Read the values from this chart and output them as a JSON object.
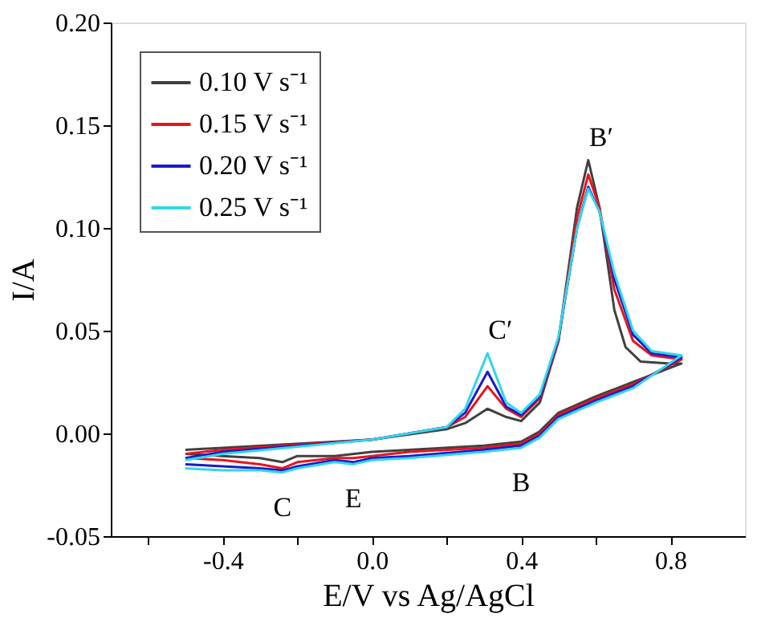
{
  "chart_data": {
    "type": "line",
    "xlabel": "E/V vs Ag/AgCl",
    "ylabel": "I/A",
    "xlim": [
      -0.7,
      1.0
    ],
    "ylim": [
      -0.05,
      0.2
    ],
    "xticks": [
      {
        "value": -0.6,
        "label": null
      },
      {
        "value": -0.4,
        "label": "-0.4"
      },
      {
        "value": -0.2,
        "label": null
      },
      {
        "value": 0.0,
        "label": "0.0"
      },
      {
        "value": 0.2,
        "label": null
      },
      {
        "value": 0.4,
        "label": "0.4"
      },
      {
        "value": 0.6,
        "label": null
      },
      {
        "value": 0.8,
        "label": "0.8"
      }
    ],
    "yticks": [
      {
        "value": -0.05,
        "label": "-0.05"
      },
      {
        "value": 0.0,
        "label": "0.00"
      },
      {
        "value": 0.05,
        "label": "0.05"
      },
      {
        "value": 0.1,
        "label": "0.10"
      },
      {
        "value": 0.15,
        "label": "0.15"
      },
      {
        "value": 0.2,
        "label": "0.20"
      }
    ],
    "grid": false,
    "legend": "top left",
    "marker": "none",
    "line_style": "solid",
    "series": [
      {
        "name": "0.10 V s⁻¹",
        "color": "#404040",
        "x": [
          -0.5,
          -0.4,
          0.0,
          0.2,
          0.25,
          0.31,
          0.36,
          0.4,
          0.45,
          0.5,
          0.55,
          0.58,
          0.61,
          0.65,
          0.68,
          0.72,
          0.8,
          0.83,
          0.7,
          0.6,
          0.5,
          0.45,
          0.4,
          0.3,
          0.1,
          0.0,
          -0.1,
          -0.2,
          -0.24,
          -0.3,
          -0.4,
          -0.5
        ],
        "values": [
          -0.008,
          -0.007,
          -0.003,
          0.002,
          0.005,
          0.012,
          0.008,
          0.006,
          0.015,
          0.045,
          0.11,
          0.133,
          0.11,
          0.06,
          0.042,
          0.035,
          0.034,
          0.034,
          0.025,
          0.018,
          0.01,
          0.001,
          -0.004,
          -0.006,
          -0.008,
          -0.009,
          -0.011,
          -0.011,
          -0.014,
          -0.012,
          -0.011,
          -0.01
        ]
      },
      {
        "name": "0.15 V s⁻¹",
        "color": "#e8141c",
        "x": [
          -0.5,
          -0.4,
          0.0,
          0.2,
          0.25,
          0.31,
          0.36,
          0.4,
          0.45,
          0.5,
          0.55,
          0.58,
          0.61,
          0.65,
          0.7,
          0.75,
          0.83,
          0.7,
          0.6,
          0.5,
          0.45,
          0.4,
          0.3,
          0.1,
          0.0,
          -0.05,
          -0.1,
          -0.2,
          -0.24,
          -0.3,
          -0.4,
          -0.5
        ],
        "values": [
          -0.01,
          -0.008,
          -0.003,
          0.003,
          0.008,
          0.023,
          0.012,
          0.008,
          0.017,
          0.045,
          0.105,
          0.126,
          0.11,
          0.07,
          0.045,
          0.038,
          0.036,
          0.024,
          0.017,
          0.009,
          0.0,
          -0.005,
          -0.007,
          -0.009,
          -0.011,
          -0.012,
          -0.012,
          -0.014,
          -0.017,
          -0.015,
          -0.013,
          -0.012
        ]
      },
      {
        "name": "0.20 V s⁻¹",
        "color": "#1a1acc",
        "x": [
          -0.5,
          -0.4,
          0.0,
          0.2,
          0.25,
          0.31,
          0.36,
          0.4,
          0.45,
          0.5,
          0.55,
          0.58,
          0.61,
          0.65,
          0.7,
          0.75,
          0.83,
          0.7,
          0.6,
          0.5,
          0.45,
          0.4,
          0.3,
          0.1,
          0.0,
          -0.05,
          -0.1,
          -0.2,
          -0.24,
          -0.3,
          -0.4,
          -0.5
        ],
        "values": [
          -0.012,
          -0.009,
          -0.003,
          0.003,
          0.01,
          0.03,
          0.013,
          0.009,
          0.018,
          0.046,
          0.1,
          0.12,
          0.108,
          0.075,
          0.048,
          0.039,
          0.037,
          0.023,
          0.016,
          0.008,
          -0.001,
          -0.006,
          -0.008,
          -0.011,
          -0.012,
          -0.014,
          -0.013,
          -0.016,
          -0.018,
          -0.017,
          -0.016,
          -0.015
        ]
      },
      {
        "name": "0.25 V s⁻¹",
        "color": "#33d6e6",
        "x": [
          -0.5,
          -0.4,
          0.0,
          0.2,
          0.25,
          0.31,
          0.36,
          0.4,
          0.45,
          0.5,
          0.55,
          0.58,
          0.61,
          0.65,
          0.7,
          0.75,
          0.83,
          0.7,
          0.6,
          0.5,
          0.45,
          0.4,
          0.3,
          0.1,
          0.0,
          -0.05,
          -0.1,
          -0.2,
          -0.24,
          -0.3,
          -0.4,
          -0.5
        ],
        "values": [
          -0.013,
          -0.01,
          -0.003,
          0.003,
          0.012,
          0.039,
          0.015,
          0.01,
          0.019,
          0.047,
          0.1,
          0.119,
          0.108,
          0.078,
          0.05,
          0.04,
          0.038,
          0.022,
          0.015,
          0.007,
          -0.002,
          -0.007,
          -0.009,
          -0.012,
          -0.013,
          -0.015,
          -0.014,
          -0.017,
          -0.019,
          -0.018,
          -0.018,
          -0.017
        ]
      }
    ],
    "annotations": [
      {
        "text": "B′",
        "x": 0.58,
        "y": 0.133
      },
      {
        "text": "C′",
        "x": 0.31,
        "y": 0.039
      },
      {
        "text": "C",
        "x": -0.24,
        "y": -0.019
      },
      {
        "text": "E",
        "x": -0.05,
        "y": -0.015
      },
      {
        "text": "B",
        "x": 0.4,
        "y": -0.007
      }
    ]
  }
}
